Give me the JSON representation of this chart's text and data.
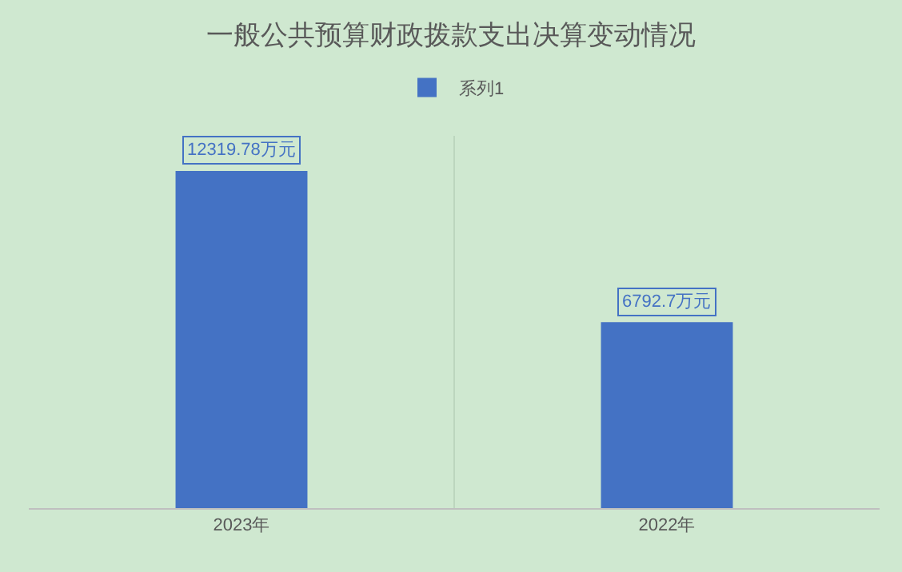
{
  "chart_data": {
    "type": "bar",
    "title": "一般公共预算财政拨款支出决算变动情况",
    "categories": [
      "2023年",
      "2022年"
    ],
    "series": [
      {
        "name": "系列1",
        "color": "#4472c4",
        "values": [
          12319.78,
          6792.7
        ],
        "value_labels": [
          "12319.78万元",
          "6792.7万元"
        ]
      }
    ],
    "grid": "x",
    "legend": "top"
  }
}
